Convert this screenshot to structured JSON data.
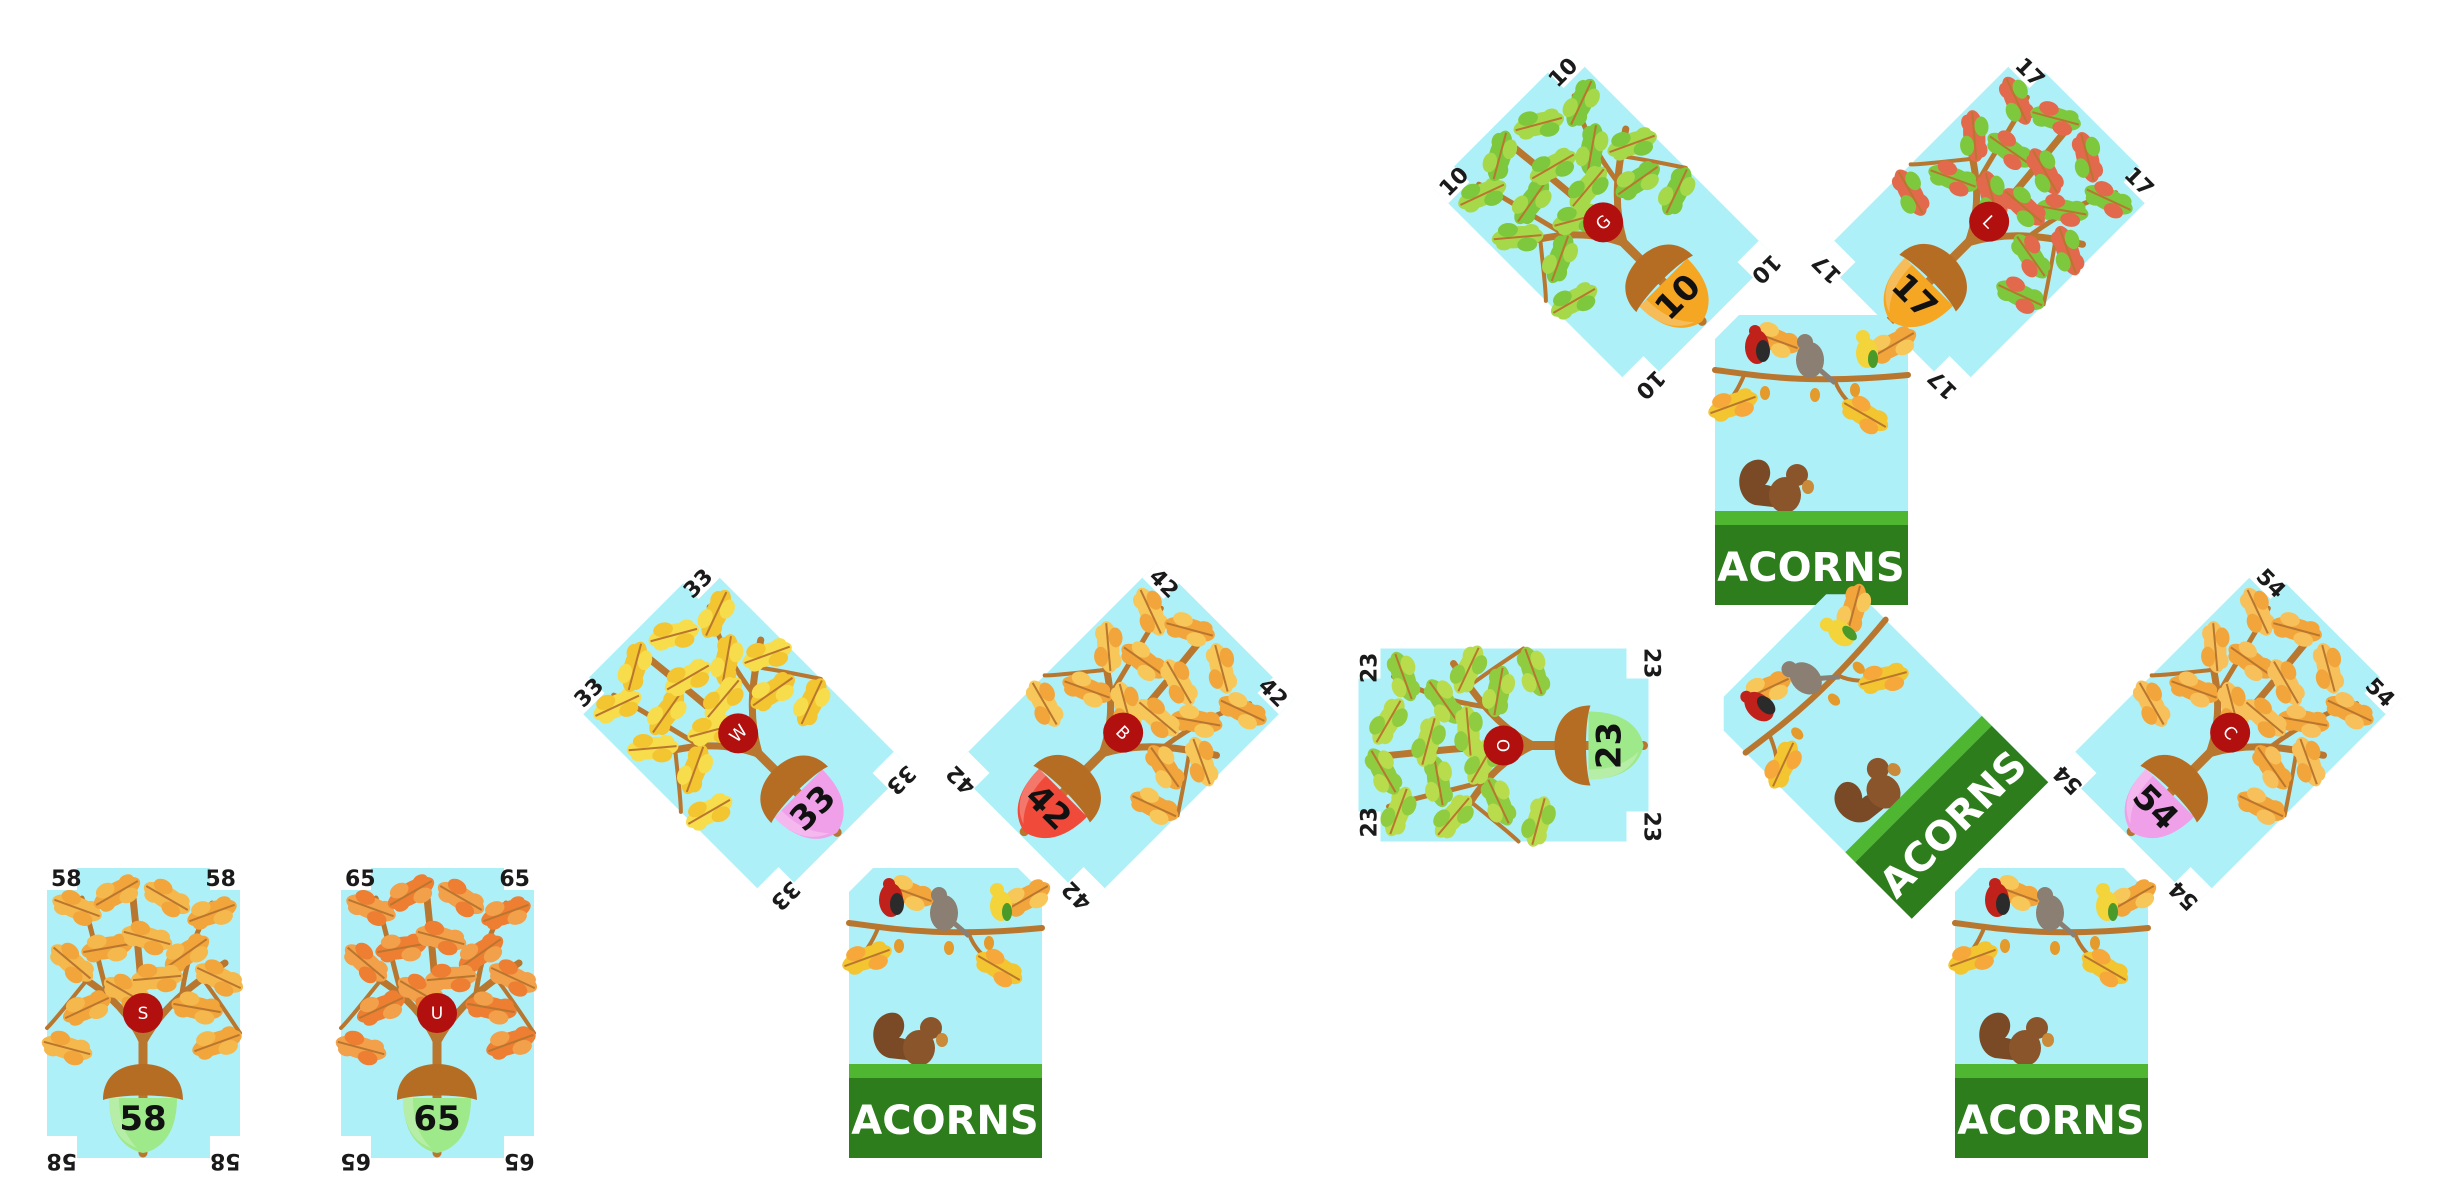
{
  "colors": {
    "sky": "#aef0f8",
    "branch": "#b9762f",
    "acorn_cap": "#b56d24",
    "marker_red": "#b20f0f",
    "banner_green": "#2d7d1c",
    "grass": "#4fb632"
  },
  "tree_cards": [
    {
      "id": "g",
      "number": "10",
      "letter": "G",
      "acorn": "#f5a623",
      "leaf": "#7dc83c",
      "leaf2": "#a6d94a"
    },
    {
      "id": "l",
      "number": "17",
      "letter": "L",
      "acorn": "#f5a623",
      "leaf": "#7dc83c",
      "leaf2": "#e3694c"
    },
    {
      "id": "w",
      "number": "33",
      "letter": "W",
      "acorn": "#f0a0e8",
      "leaf": "#f2c531",
      "leaf2": "#f7dc4b"
    },
    {
      "id": "b",
      "number": "42",
      "letter": "B",
      "acorn": "#f04a3a",
      "leaf": "#f2a53b",
      "leaf2": "#f7c75a"
    },
    {
      "id": "o",
      "number": "23",
      "letter": "O",
      "acorn": "#9ee98a",
      "leaf": "#8fcc3f",
      "leaf2": "#b8dc4c"
    },
    {
      "id": "c",
      "number": "54",
      "letter": "C",
      "acorn": "#f0a0e8",
      "leaf": "#f2a53b",
      "leaf2": "#f7c05a"
    },
    {
      "id": "s",
      "number": "58",
      "letter": "S",
      "acorn": "#9ee98a",
      "leaf": "#f2a53b",
      "leaf2": "#f5b84d"
    },
    {
      "id": "u",
      "number": "65",
      "letter": "U",
      "acorn": "#9ee98a",
      "leaf": "#ee7e32",
      "leaf2": "#f2a04a"
    }
  ],
  "base_cards": [
    {
      "id": "base-1",
      "title": "ACORNS"
    },
    {
      "id": "base-2",
      "title": "ACORNS"
    },
    {
      "id": "base-3",
      "title": "ACORNS"
    },
    {
      "id": "base-4",
      "title": "ACORNS"
    }
  ]
}
